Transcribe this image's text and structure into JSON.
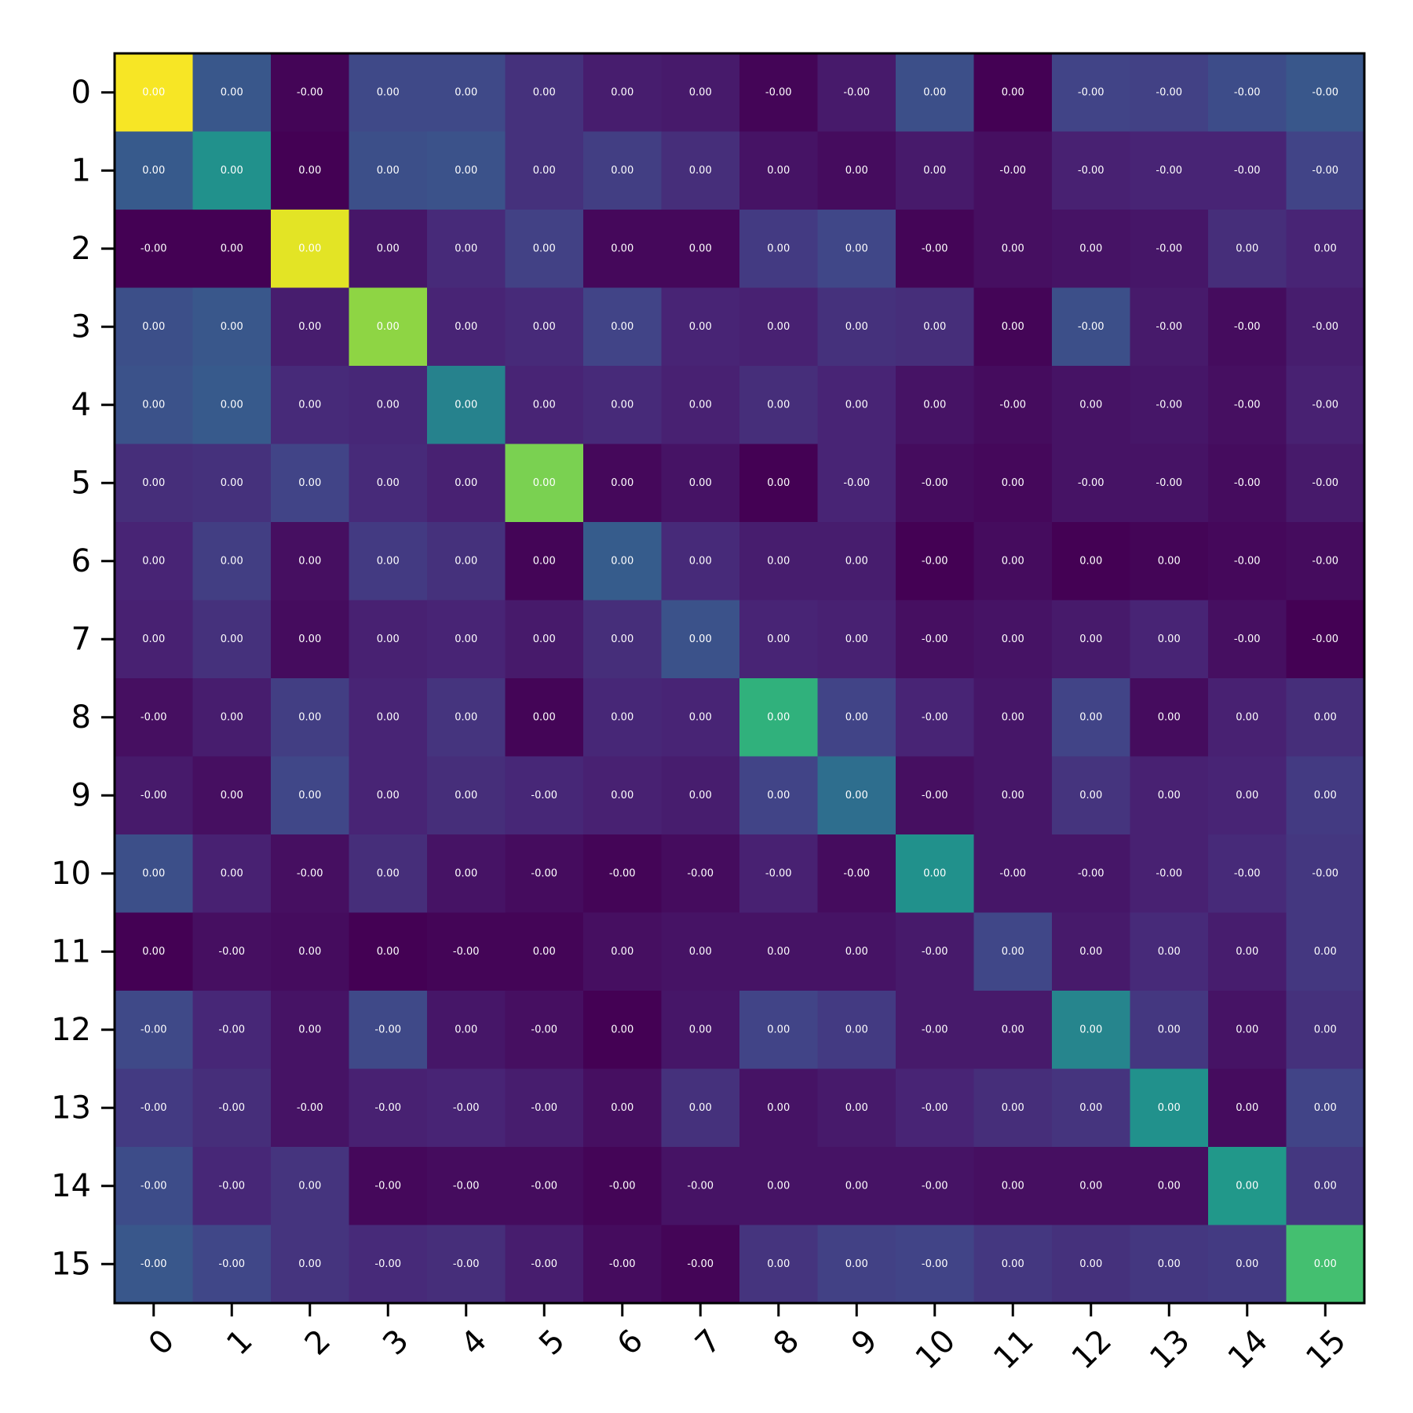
{
  "chart_data": {
    "type": "heatmap",
    "title": "",
    "xlabel": "",
    "ylabel": "",
    "x_tick_labels": [
      "0",
      "1",
      "2",
      "3",
      "4",
      "5",
      "6",
      "7",
      "8",
      "9",
      "10",
      "11",
      "12",
      "13",
      "14",
      "15"
    ],
    "y_tick_labels": [
      "0",
      "1",
      "2",
      "3",
      "4",
      "5",
      "6",
      "7",
      "8",
      "9",
      "10",
      "11",
      "12",
      "13",
      "14",
      "15"
    ],
    "colormap": "viridis",
    "color_range": [
      0,
      1
    ],
    "grid": false,
    "legend": "none",
    "color_values": [
      [
        0.99,
        0.27,
        0.01,
        0.22,
        0.22,
        0.14,
        0.08,
        0.07,
        0.01,
        0.07,
        0.24,
        0.0,
        0.2,
        0.19,
        0.23,
        0.27
      ],
      [
        0.28,
        0.5,
        0.0,
        0.24,
        0.25,
        0.14,
        0.18,
        0.13,
        0.05,
        0.03,
        0.07,
        0.04,
        0.09,
        0.1,
        0.1,
        0.2
      ],
      [
        0.0,
        0.0,
        0.96,
        0.06,
        0.12,
        0.19,
        0.02,
        0.02,
        0.17,
        0.21,
        0.01,
        0.04,
        0.05,
        0.06,
        0.13,
        0.1
      ],
      [
        0.24,
        0.27,
        0.08,
        0.83,
        0.1,
        0.12,
        0.2,
        0.1,
        0.09,
        0.14,
        0.13,
        0.01,
        0.24,
        0.07,
        0.03,
        0.08
      ],
      [
        0.25,
        0.28,
        0.12,
        0.11,
        0.44,
        0.1,
        0.12,
        0.09,
        0.13,
        0.1,
        0.05,
        0.03,
        0.05,
        0.06,
        0.04,
        0.09
      ],
      [
        0.13,
        0.14,
        0.2,
        0.12,
        0.09,
        0.8,
        0.02,
        0.05,
        0.0,
        0.1,
        0.03,
        0.02,
        0.05,
        0.05,
        0.03,
        0.07
      ],
      [
        0.1,
        0.18,
        0.04,
        0.17,
        0.14,
        0.01,
        0.29,
        0.12,
        0.08,
        0.08,
        0.0,
        0.03,
        0.0,
        0.01,
        0.02,
        0.03
      ],
      [
        0.09,
        0.14,
        0.03,
        0.09,
        0.1,
        0.07,
        0.13,
        0.25,
        0.1,
        0.09,
        0.04,
        0.05,
        0.07,
        0.1,
        0.04,
        0.0
      ],
      [
        0.04,
        0.08,
        0.18,
        0.1,
        0.15,
        0.01,
        0.11,
        0.1,
        0.64,
        0.2,
        0.1,
        0.06,
        0.2,
        0.03,
        0.09,
        0.13
      ],
      [
        0.07,
        0.04,
        0.21,
        0.1,
        0.13,
        0.11,
        0.09,
        0.08,
        0.2,
        0.36,
        0.04,
        0.06,
        0.15,
        0.09,
        0.1,
        0.17
      ],
      [
        0.24,
        0.09,
        0.04,
        0.13,
        0.05,
        0.03,
        0.01,
        0.03,
        0.09,
        0.03,
        0.5,
        0.06,
        0.06,
        0.09,
        0.12,
        0.16
      ],
      [
        0.0,
        0.04,
        0.03,
        0.0,
        0.01,
        0.01,
        0.04,
        0.05,
        0.05,
        0.05,
        0.07,
        0.21,
        0.07,
        0.12,
        0.08,
        0.16
      ],
      [
        0.22,
        0.11,
        0.05,
        0.22,
        0.06,
        0.04,
        0.0,
        0.06,
        0.2,
        0.17,
        0.07,
        0.07,
        0.45,
        0.16,
        0.05,
        0.14
      ],
      [
        0.17,
        0.13,
        0.05,
        0.09,
        0.1,
        0.08,
        0.04,
        0.14,
        0.05,
        0.07,
        0.1,
        0.13,
        0.15,
        0.5,
        0.03,
        0.2
      ],
      [
        0.23,
        0.11,
        0.15,
        0.02,
        0.03,
        0.03,
        0.01,
        0.05,
        0.05,
        0.05,
        0.05,
        0.04,
        0.04,
        0.04,
        0.53,
        0.16
      ],
      [
        0.27,
        0.21,
        0.15,
        0.12,
        0.13,
        0.08,
        0.03,
        0.01,
        0.15,
        0.19,
        0.2,
        0.16,
        0.14,
        0.16,
        0.17,
        0.7
      ]
    ],
    "cell_labels": [
      [
        "0.00",
        "0.00",
        "-0.00",
        "0.00",
        "0.00",
        "0.00",
        "0.00",
        "0.00",
        "-0.00",
        "-0.00",
        "0.00",
        "0.00",
        "-0.00",
        "-0.00",
        "-0.00",
        "-0.00"
      ],
      [
        "0.00",
        "0.00",
        "0.00",
        "0.00",
        "0.00",
        "0.00",
        "0.00",
        "0.00",
        "0.00",
        "0.00",
        "0.00",
        "-0.00",
        "-0.00",
        "-0.00",
        "-0.00",
        "-0.00"
      ],
      [
        "-0.00",
        "0.00",
        "0.00",
        "0.00",
        "0.00",
        "0.00",
        "0.00",
        "0.00",
        "0.00",
        "0.00",
        "-0.00",
        "0.00",
        "0.00",
        "-0.00",
        "0.00",
        "0.00"
      ],
      [
        "0.00",
        "0.00",
        "0.00",
        "0.00",
        "0.00",
        "0.00",
        "0.00",
        "0.00",
        "0.00",
        "0.00",
        "0.00",
        "0.00",
        "-0.00",
        "-0.00",
        "-0.00",
        "-0.00"
      ],
      [
        "0.00",
        "0.00",
        "0.00",
        "0.00",
        "0.00",
        "0.00",
        "0.00",
        "0.00",
        "0.00",
        "0.00",
        "0.00",
        "-0.00",
        "0.00",
        "-0.00",
        "-0.00",
        "-0.00"
      ],
      [
        "0.00",
        "0.00",
        "0.00",
        "0.00",
        "0.00",
        "0.00",
        "0.00",
        "0.00",
        "0.00",
        "-0.00",
        "-0.00",
        "0.00",
        "-0.00",
        "-0.00",
        "-0.00",
        "-0.00"
      ],
      [
        "0.00",
        "0.00",
        "0.00",
        "0.00",
        "0.00",
        "0.00",
        "0.00",
        "0.00",
        "0.00",
        "0.00",
        "-0.00",
        "0.00",
        "0.00",
        "0.00",
        "-0.00",
        "-0.00"
      ],
      [
        "0.00",
        "0.00",
        "0.00",
        "0.00",
        "0.00",
        "0.00",
        "0.00",
        "0.00",
        "0.00",
        "0.00",
        "-0.00",
        "0.00",
        "0.00",
        "0.00",
        "-0.00",
        "-0.00"
      ],
      [
        "-0.00",
        "0.00",
        "0.00",
        "0.00",
        "0.00",
        "0.00",
        "0.00",
        "0.00",
        "0.00",
        "0.00",
        "-0.00",
        "0.00",
        "0.00",
        "0.00",
        "0.00",
        "0.00"
      ],
      [
        "-0.00",
        "0.00",
        "0.00",
        "0.00",
        "0.00",
        "-0.00",
        "0.00",
        "0.00",
        "0.00",
        "0.00",
        "-0.00",
        "0.00",
        "0.00",
        "0.00",
        "0.00",
        "0.00"
      ],
      [
        "0.00",
        "0.00",
        "-0.00",
        "0.00",
        "0.00",
        "-0.00",
        "-0.00",
        "-0.00",
        "-0.00",
        "-0.00",
        "0.00",
        "-0.00",
        "-0.00",
        "-0.00",
        "-0.00",
        "-0.00"
      ],
      [
        "0.00",
        "-0.00",
        "0.00",
        "0.00",
        "-0.00",
        "0.00",
        "0.00",
        "0.00",
        "0.00",
        "0.00",
        "-0.00",
        "0.00",
        "0.00",
        "0.00",
        "0.00",
        "0.00"
      ],
      [
        "-0.00",
        "-0.00",
        "0.00",
        "-0.00",
        "0.00",
        "-0.00",
        "0.00",
        "0.00",
        "0.00",
        "0.00",
        "-0.00",
        "0.00",
        "0.00",
        "0.00",
        "0.00",
        "0.00"
      ],
      [
        "-0.00",
        "-0.00",
        "-0.00",
        "-0.00",
        "-0.00",
        "-0.00",
        "0.00",
        "0.00",
        "0.00",
        "0.00",
        "-0.00",
        "0.00",
        "0.00",
        "0.00",
        "0.00",
        "0.00"
      ],
      [
        "-0.00",
        "-0.00",
        "0.00",
        "-0.00",
        "-0.00",
        "-0.00",
        "-0.00",
        "-0.00",
        "0.00",
        "0.00",
        "-0.00",
        "0.00",
        "0.00",
        "0.00",
        "0.00",
        "0.00"
      ],
      [
        "-0.00",
        "-0.00",
        "0.00",
        "-0.00",
        "-0.00",
        "-0.00",
        "-0.00",
        "-0.00",
        "0.00",
        "0.00",
        "-0.00",
        "0.00",
        "0.00",
        "0.00",
        "0.00",
        "0.00"
      ]
    ]
  }
}
